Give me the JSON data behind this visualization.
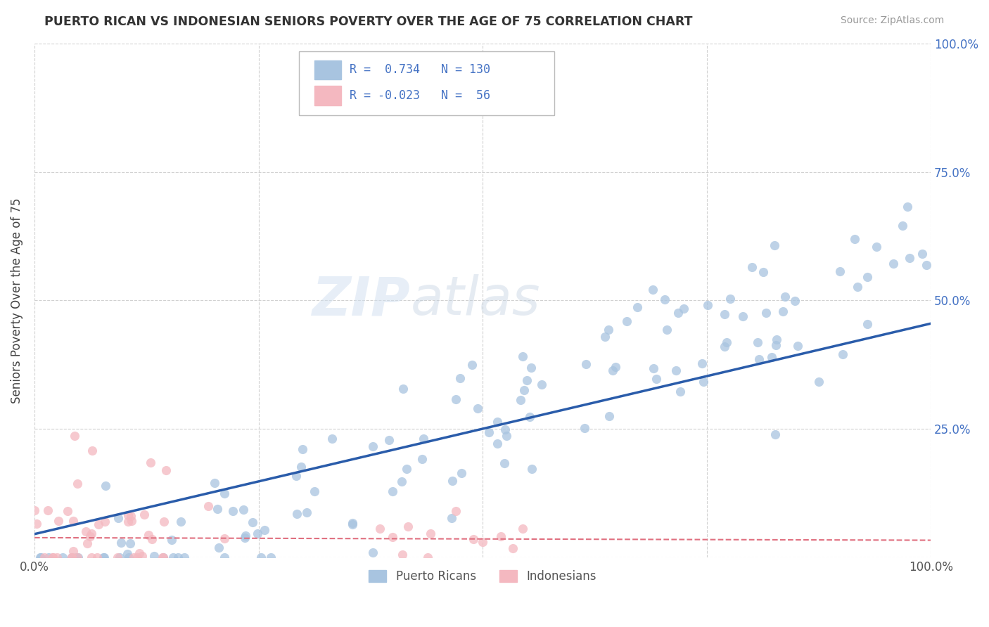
{
  "title": "PUERTO RICAN VS INDONESIAN SENIORS POVERTY OVER THE AGE OF 75 CORRELATION CHART",
  "source": "Source: ZipAtlas.com",
  "ylabel": "Seniors Poverty Over the Age of 75",
  "r_puerto": 0.734,
  "n_puerto": 130,
  "r_indonesian": -0.023,
  "n_indonesian": 56,
  "xlim": [
    0.0,
    1.0
  ],
  "ylim": [
    0.0,
    1.0
  ],
  "xticks": [
    0.0,
    0.25,
    0.5,
    0.75,
    1.0
  ],
  "yticks": [
    0.0,
    0.25,
    0.5,
    0.75,
    1.0
  ],
  "color_puerto": "#a8c4e0",
  "color_indonesian": "#f4b8c0",
  "line_color_puerto": "#2a5caa",
  "line_color_indonesian": "#e07080",
  "watermark_zip": "ZIP",
  "watermark_atlas": "atlas",
  "background_color": "#ffffff",
  "grid_color": "#cccccc",
  "title_color": "#333333",
  "legend_box_color_puerto": "#a8c4e0",
  "legend_box_color_indonesian": "#f4b8c0",
  "legend_text_color": "#4472c4",
  "right_axis_color": "#4472c4",
  "seed": 99,
  "slope_pr": 0.41,
  "intercept_pr": 0.045,
  "slope_id": -0.005,
  "intercept_id": 0.038
}
